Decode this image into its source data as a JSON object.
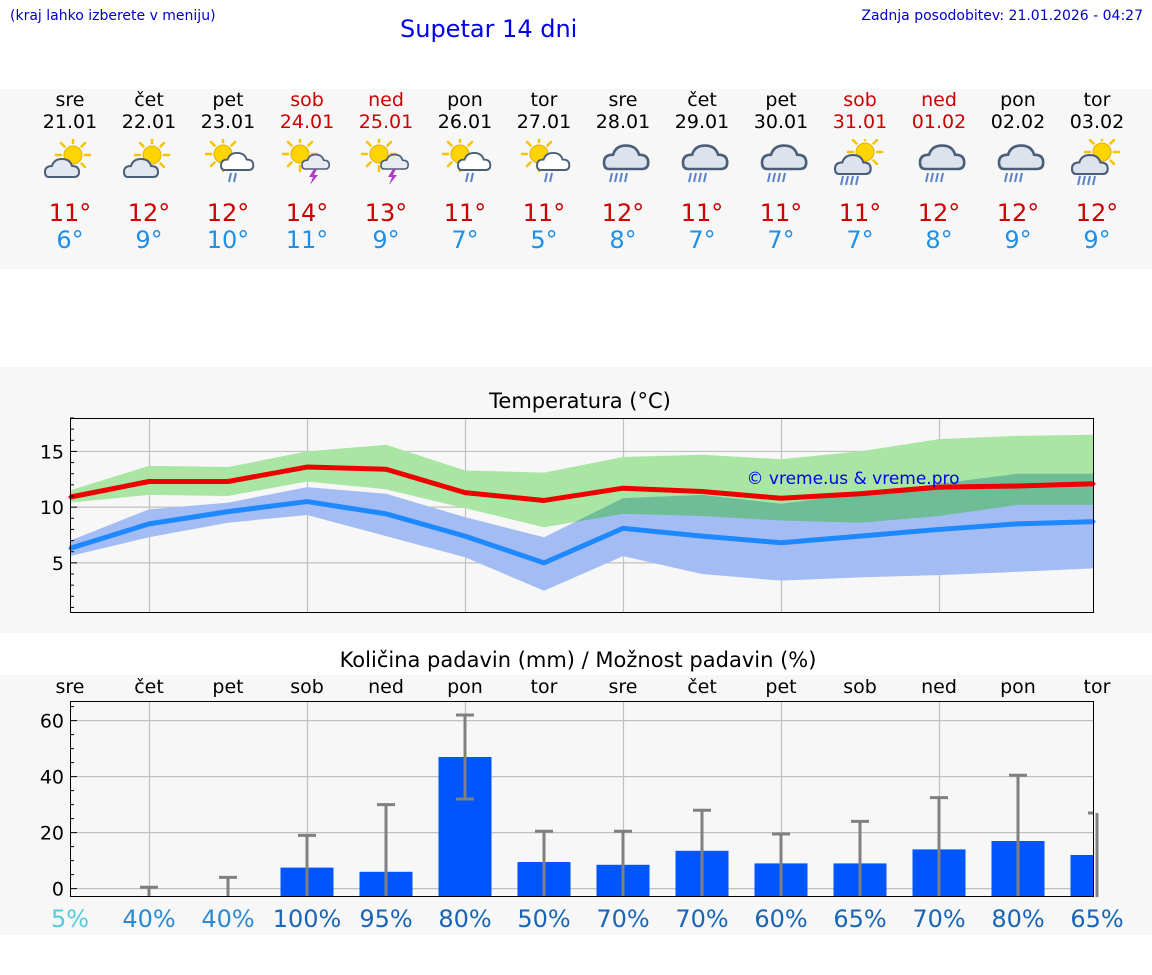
{
  "header": {
    "hint": "(kraj lahko izberete v meniju)",
    "title": "Supetar 14 dni",
    "updated": "Zadnja posodobitev: 21.01.2026 - 04:27"
  },
  "days": [
    {
      "name": "sre",
      "date": "21.01",
      "weekend": false,
      "icon": "sun-cloud-icon",
      "tmax": "11°",
      "tmin": "6°"
    },
    {
      "name": "čet",
      "date": "22.01",
      "weekend": false,
      "icon": "sun-cloud-icon",
      "tmax": "12°",
      "tmin": "9°"
    },
    {
      "name": "pet",
      "date": "23.01",
      "weekend": false,
      "icon": "sun-rain-icon",
      "tmax": "12°",
      "tmin": "10°"
    },
    {
      "name": "sob",
      "date": "24.01",
      "weekend": true,
      "icon": "sun-thunder-icon",
      "tmax": "14°",
      "tmin": "11°"
    },
    {
      "name": "ned",
      "date": "25.01",
      "weekend": true,
      "icon": "sun-thunder-icon",
      "tmax": "13°",
      "tmin": "9°"
    },
    {
      "name": "pon",
      "date": "26.01",
      "weekend": false,
      "icon": "sun-rain-icon",
      "tmax": "11°",
      "tmin": "7°"
    },
    {
      "name": "tor",
      "date": "27.01",
      "weekend": false,
      "icon": "sun-rain-icon",
      "tmax": "11°",
      "tmin": "5°"
    },
    {
      "name": "sre",
      "date": "28.01",
      "weekend": false,
      "icon": "heavy-rain-icon",
      "tmax": "12°",
      "tmin": "8°"
    },
    {
      "name": "čet",
      "date": "29.01",
      "weekend": false,
      "icon": "heavy-rain-icon",
      "tmax": "11°",
      "tmin": "7°"
    },
    {
      "name": "pet",
      "date": "30.01",
      "weekend": false,
      "icon": "heavy-rain-icon",
      "tmax": "11°",
      "tmin": "7°"
    },
    {
      "name": "sob",
      "date": "31.01",
      "weekend": true,
      "icon": "sun-heavy-rain-icon",
      "tmax": "11°",
      "tmin": "7°"
    },
    {
      "name": "ned",
      "date": "01.02",
      "weekend": true,
      "icon": "heavy-rain-icon",
      "tmax": "12°",
      "tmin": "8°"
    },
    {
      "name": "pon",
      "date": "02.02",
      "weekend": false,
      "icon": "heavy-rain-icon",
      "tmax": "12°",
      "tmin": "9°"
    },
    {
      "name": "tor",
      "date": "03.02",
      "weekend": false,
      "icon": "sun-heavy-rain-icon",
      "tmax": "12°",
      "tmin": "9°"
    }
  ],
  "chart_data": [
    {
      "type": "line",
      "title": "Temperatura (°C)",
      "xlabel": "",
      "ylabel": "",
      "x": [
        0,
        1,
        2,
        3,
        4,
        5,
        6,
        7,
        8,
        9,
        10,
        11,
        12,
        13
      ],
      "ylim": [
        0.5,
        18
      ],
      "yticks": [
        5,
        10,
        15
      ],
      "grid": true,
      "watermark": "© vreme.us & vreme.pro",
      "series": [
        {
          "name": "max",
          "color": "#ee0000",
          "values": [
            10.9,
            12.3,
            12.3,
            13.6,
            13.4,
            11.3,
            10.6,
            11.7,
            11.4,
            10.8,
            11.2,
            11.8,
            11.9,
            12.1
          ]
        },
        {
          "name": "min",
          "color": "#1e88ff",
          "values": [
            6.3,
            8.5,
            9.6,
            10.5,
            9.4,
            7.4,
            5.0,
            8.1,
            7.4,
            6.8,
            7.4,
            8.0,
            8.5,
            8.7
          ]
        },
        {
          "name": "max-range-high",
          "values": [
            11.5,
            13.7,
            13.6,
            15.0,
            15.6,
            13.3,
            13.1,
            14.5,
            14.7,
            14.3,
            15.0,
            16.1,
            16.4,
            16.5
          ]
        },
        {
          "name": "max-range-low",
          "values": [
            10.4,
            11.1,
            11.0,
            12.3,
            11.6,
            9.9,
            8.2,
            9.4,
            9.2,
            8.8,
            8.6,
            9.2,
            10.2,
            10.2
          ]
        },
        {
          "name": "min-range-high",
          "values": [
            7.0,
            9.8,
            10.4,
            11.8,
            11.2,
            9.1,
            7.3,
            10.8,
            11.1,
            10.3,
            11.2,
            12.1,
            13.0,
            13.0
          ]
        },
        {
          "name": "min-range-low",
          "values": [
            5.6,
            7.3,
            8.6,
            9.3,
            7.4,
            5.5,
            2.5,
            5.6,
            4.0,
            3.4,
            3.7,
            3.9,
            4.2,
            4.5
          ]
        }
      ],
      "colors": {
        "max_band": "#a9e5a3",
        "min_band": "#a3bdf4",
        "overlap": "#6fbd97"
      }
    },
    {
      "type": "bar",
      "title": "Količina padavin (mm) / Možnost padavin (%)",
      "xlabel": "",
      "ylabel": "",
      "categories": [
        "sre",
        "čet",
        "pet",
        "sob",
        "ned",
        "pon",
        "tor",
        "sre",
        "čet",
        "pet",
        "sob",
        "ned",
        "pon",
        "tor"
      ],
      "values": [
        0,
        0,
        0,
        7.5,
        6,
        47,
        9.5,
        8.5,
        13.5,
        9,
        9,
        14,
        17,
        12
      ],
      "error_high": [
        0,
        0.5,
        4,
        19,
        30,
        62,
        20.5,
        20.5,
        28,
        19.5,
        24,
        32.5,
        40.5,
        27
      ],
      "error_low": [
        0,
        0,
        0,
        0,
        0,
        32,
        0,
        0,
        0,
        0,
        0,
        0,
        0,
        0
      ],
      "ylim": [
        -3,
        67
      ],
      "yticks": [
        0,
        20,
        40,
        60
      ],
      "grid": true,
      "probability": [
        "5%",
        "40%",
        "40%",
        "100%",
        "95%",
        "80%",
        "50%",
        "70%",
        "70%",
        "60%",
        "65%",
        "70%",
        "80%",
        "65%"
      ],
      "probability_colors": [
        "#55ccdd",
        "#2a8ad4",
        "#2a8ad4",
        "#1865b8",
        "#1865b8",
        "#1865b8",
        "#1865b8",
        "#1865b8",
        "#1865b8",
        "#1865b8",
        "#1865b8",
        "#1865b8",
        "#1865b8",
        "#1865b8"
      ],
      "colors": {
        "bar": "#0055ff",
        "error": "#808080"
      }
    }
  ]
}
